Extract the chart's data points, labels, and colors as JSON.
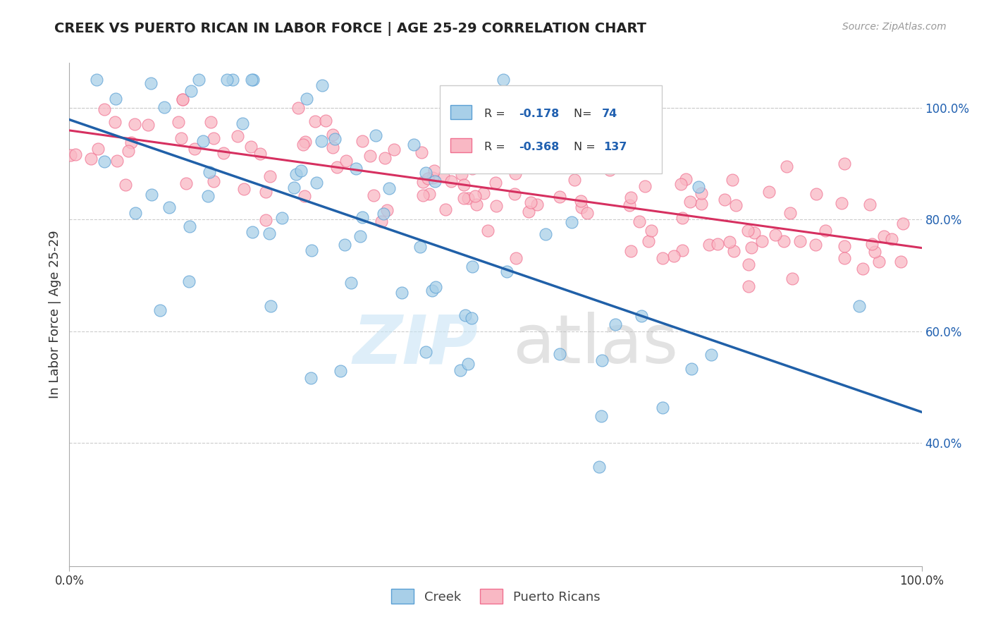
{
  "title": "CREEK VS PUERTO RICAN IN LABOR FORCE | AGE 25-29 CORRELATION CHART",
  "source": "Source: ZipAtlas.com",
  "ylabel": "In Labor Force | Age 25-29",
  "creek_R": "-0.178",
  "creek_N": "74",
  "pr_R": "-0.368",
  "pr_N": "137",
  "creek_color": "#a8cfe8",
  "creek_edge": "#5a9fd4",
  "pr_color": "#f9b8c4",
  "pr_edge": "#f07090",
  "trendline_creek_color": "#2060a8",
  "trendline_pr_color": "#d63060",
  "trendline_ext_color": "#90c0e0",
  "xlim": [
    0.0,
    1.0
  ],
  "ylim": [
    0.18,
    1.08
  ],
  "yticks_right": [
    0.4,
    0.6,
    0.8,
    1.0
  ],
  "grid_color": "#cccccc",
  "bg_color": "#ffffff"
}
